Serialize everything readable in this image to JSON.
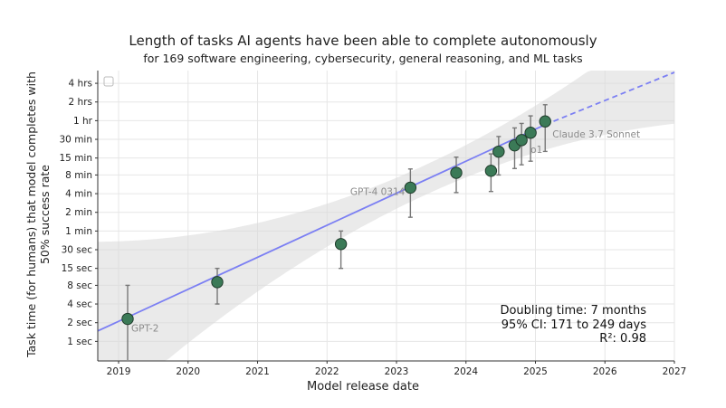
{
  "chart_data": {
    "type": "scatter",
    "title": "Length of tasks AI agents have been able to complete autonomously",
    "subtitle": "for 169 software engineering, cybersecurity, general reasoning, and ML tasks",
    "xlabel": "Model release date",
    "ylabel": "Task time (for humans) that model completes with 50% success rate",
    "xlim": [
      2018.7,
      2027
    ],
    "ylim_seconds": [
      0.5,
      21600
    ],
    "y_scale": "log2",
    "x_ticks": [
      2019,
      2020,
      2021,
      2022,
      2023,
      2024,
      2025,
      2026,
      2027
    ],
    "y_ticks": [
      {
        "label": "1 sec",
        "seconds": 1
      },
      {
        "label": "2 sec",
        "seconds": 2
      },
      {
        "label": "4 sec",
        "seconds": 4
      },
      {
        "label": "8 sec",
        "seconds": 8
      },
      {
        "label": "15 sec",
        "seconds": 15
      },
      {
        "label": "30 sec",
        "seconds": 30
      },
      {
        "label": "1 min",
        "seconds": 60
      },
      {
        "label": "2 min",
        "seconds": 120
      },
      {
        "label": "4 min",
        "seconds": 240
      },
      {
        "label": "8 min",
        "seconds": 480
      },
      {
        "label": "15 min",
        "seconds": 900
      },
      {
        "label": "30 min",
        "seconds": 1800
      },
      {
        "label": "1 hr",
        "seconds": 3600
      },
      {
        "label": "2 hrs",
        "seconds": 7200
      },
      {
        "label": "4 hrs",
        "seconds": 14400
      }
    ],
    "points": [
      {
        "x": 2019.13,
        "y": 2.3,
        "err_low": 0.5,
        "err_high": 8,
        "label": "GPT-2"
      },
      {
        "x": 2020.42,
        "y": 9,
        "err_low": 4,
        "err_high": 15,
        "label": ""
      },
      {
        "x": 2022.2,
        "y": 37,
        "err_low": 15,
        "err_high": 60,
        "label": ""
      },
      {
        "x": 2023.2,
        "y": 300,
        "err_low": 100,
        "err_high": 600,
        "label": "GPT-4 0314"
      },
      {
        "x": 2023.86,
        "y": 520,
        "err_low": 250,
        "err_high": 930,
        "label": ""
      },
      {
        "x": 2024.36,
        "y": 560,
        "err_low": 260,
        "err_high": 1050,
        "label": ""
      },
      {
        "x": 2024.47,
        "y": 1140,
        "err_low": 480,
        "err_high": 2000,
        "label": ""
      },
      {
        "x": 2024.7,
        "y": 1440,
        "err_low": 610,
        "err_high": 2750,
        "label": ""
      },
      {
        "x": 2024.8,
        "y": 1750,
        "err_low": 700,
        "err_high": 3250,
        "label": "o1"
      },
      {
        "x": 2024.93,
        "y": 2300,
        "err_low": 800,
        "err_high": 4300,
        "label": ""
      },
      {
        "x": 2025.14,
        "y": 3500,
        "err_low": 1150,
        "err_high": 6500,
        "label": "Claude 3.7 Sonnet"
      }
    ],
    "trend": {
      "doubling_months": 7,
      "anchor_year": 2025.14,
      "anchor_seconds": 3100,
      "solid_until": 2025.14,
      "dashed_until": 2027
    },
    "stats": {
      "doubling": "Doubling time: 7 months",
      "ci": "95% CI: 171 to 249 days",
      "r2": "R²: 0.98"
    },
    "colors": {
      "point": "#3b7a57",
      "line": "#7b7ff3",
      "band": "#d9d9d9",
      "grid": "#e6e6e6",
      "errorbar": "#777777"
    }
  }
}
